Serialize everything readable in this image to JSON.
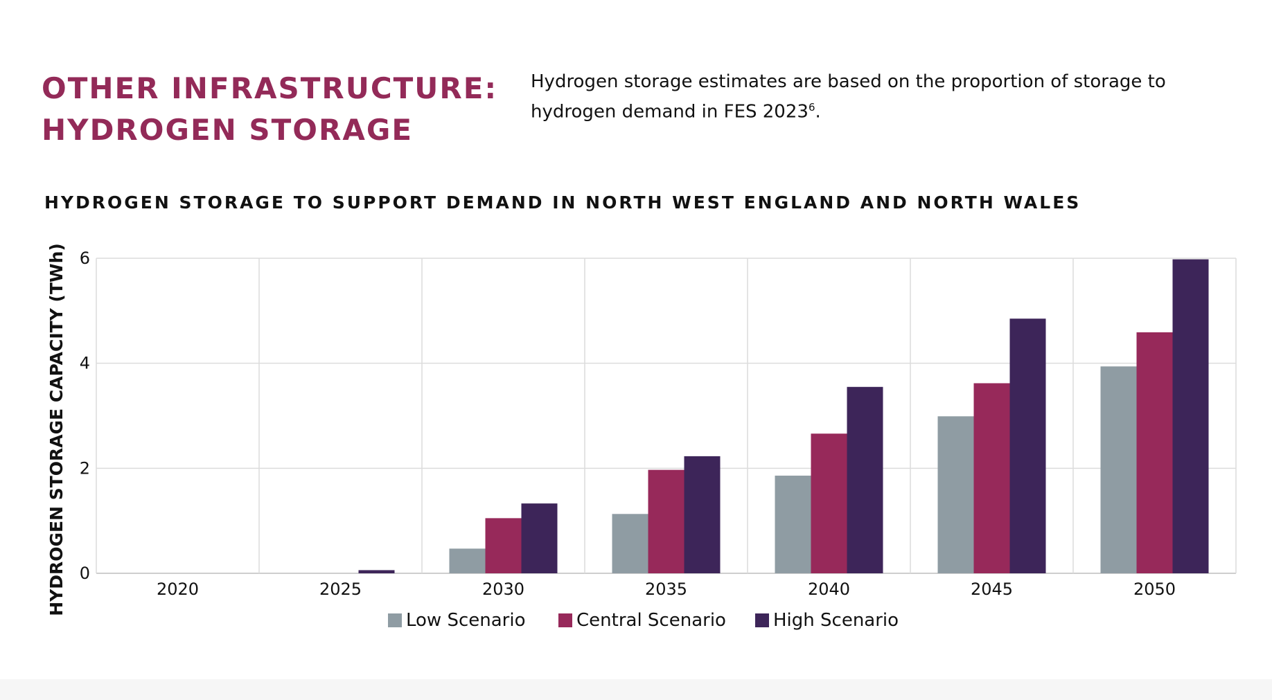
{
  "header": {
    "title_line1": "OTHER INFRASTRUCTURE:",
    "title_line2": "HYDROGEN STORAGE",
    "intro_text": "Hydrogen storage estimates are based on the proportion of storage to hydrogen demand in FES 2023",
    "intro_footnote": "6",
    "intro_end": "."
  },
  "chart_data": {
    "type": "bar",
    "title": "HYDROGEN STORAGE TO SUPPORT DEMAND IN NORTH WEST ENGLAND AND NORTH WALES",
    "xlabel": "",
    "ylabel": "HYDROGEN STORAGE CAPACITY (TWh)",
    "categories": [
      "2020",
      "2025",
      "2030",
      "2035",
      "2040",
      "2045",
      "2050"
    ],
    "series": [
      {
        "name": "Low Scenario",
        "color": "#8f9ca3",
        "values": [
          0,
          0,
          0.47,
          1.13,
          1.86,
          2.99,
          3.94
        ]
      },
      {
        "name": "Central Scenario",
        "color": "#97295a",
        "values": [
          0,
          0,
          1.05,
          1.97,
          2.66,
          3.62,
          4.59
        ]
      },
      {
        "name": "High Scenario",
        "color": "#3d2559",
        "values": [
          0,
          0.06,
          1.33,
          2.23,
          3.55,
          4.85,
          5.98
        ]
      }
    ],
    "ylim": [
      0,
      6
    ],
    "yticks": [
      0,
      2,
      4,
      6
    ],
    "grid": true,
    "legend": "bottom-center"
  }
}
